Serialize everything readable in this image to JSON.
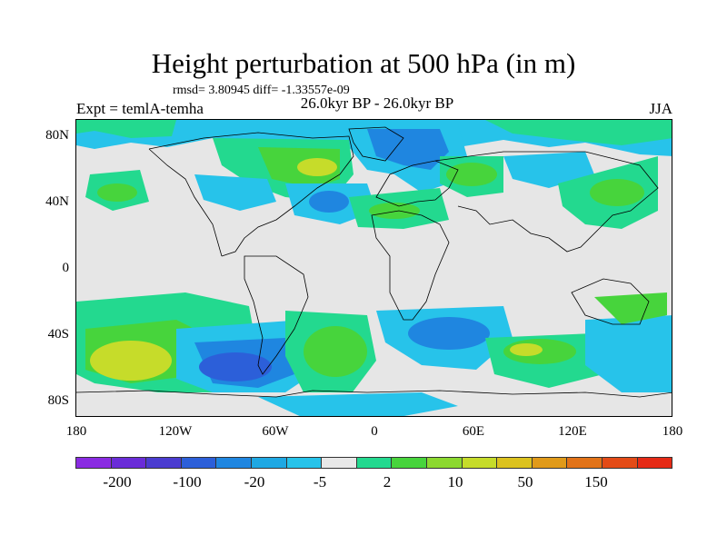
{
  "title": "Height perturbation at 500 hPa (in m)",
  "stats": "rmsd= 3.80945 diff= -1.33557e-09",
  "subtitle_left": "Expt = temlA-temha",
  "subtitle_center": "26.0kyr BP - 26.0kyr BP",
  "subtitle_right": "JJA",
  "map": {
    "lat_labels": [
      "80N",
      "40N",
      "0",
      "40S",
      "80S"
    ],
    "lon_labels": [
      "180",
      "120W",
      "60W",
      "0",
      "60E",
      "120E",
      "180"
    ]
  },
  "colorbar": {
    "labels": [
      "-200",
      "-100",
      "-20",
      "-5",
      "2",
      "10",
      "50",
      "150"
    ],
    "colors": [
      "#8a2be2",
      "#6a2cd8",
      "#4b3cd0",
      "#2c5fd9",
      "#1f86e0",
      "#1ea8e3",
      "#27c3ea",
      "#e8e8e8",
      "#23d98f",
      "#47d43c",
      "#8cd92f",
      "#c6dc2a",
      "#dcc21e",
      "#e09a19",
      "#e27318",
      "#e34b17",
      "#e52a16"
    ]
  },
  "colors": {
    "land_outline": "#000000",
    "background": "#e6e6e6",
    "light_blue": "#27c3ea",
    "mid_blue": "#1f86e0",
    "blue": "#2c5fd9",
    "teal_green": "#23d98f",
    "green": "#47d43c",
    "yellow_green": "#c6dc2a"
  }
}
